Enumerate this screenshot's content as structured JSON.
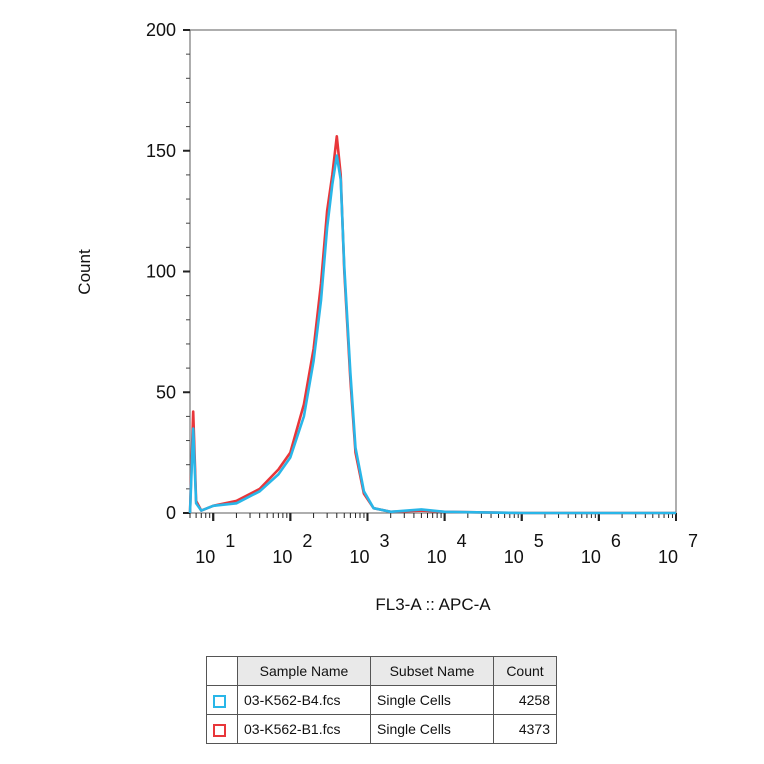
{
  "chart_data": {
    "type": "line",
    "title": "",
    "xlabel": "FL3-A :: APC-A",
    "ylabel": "Count",
    "xscale": "log",
    "xlim": [
      5,
      10000000
    ],
    "ylim": [
      0,
      200
    ],
    "x_ticks": [
      {
        "base": "10",
        "exp": "1",
        "value": 10
      },
      {
        "base": "10",
        "exp": "2",
        "value": 100
      },
      {
        "base": "10",
        "exp": "3",
        "value": 1000
      },
      {
        "base": "10",
        "exp": "4",
        "value": 10000
      },
      {
        "base": "10",
        "exp": "5",
        "value": 100000
      },
      {
        "base": "10",
        "exp": "6",
        "value": 1000000
      },
      {
        "base": "10",
        "exp": "7",
        "value": 10000000
      }
    ],
    "y_ticks": [
      {
        "label": "0",
        "value": 0
      },
      {
        "label": "50",
        "value": 50
      },
      {
        "label": "100",
        "value": 100
      },
      {
        "label": "150",
        "value": 150
      },
      {
        "label": "200",
        "value": 200
      }
    ],
    "grid": false,
    "series": [
      {
        "name": "03-K562-B1.fcs",
        "color": "#e8363a",
        "points": [
          [
            5,
            0
          ],
          [
            5.5,
            42
          ],
          [
            6,
            5
          ],
          [
            7,
            1
          ],
          [
            10,
            3
          ],
          [
            20,
            5
          ],
          [
            40,
            10
          ],
          [
            70,
            18
          ],
          [
            100,
            25
          ],
          [
            150,
            45
          ],
          [
            200,
            68
          ],
          [
            250,
            95
          ],
          [
            300,
            125
          ],
          [
            350,
            140
          ],
          [
            400,
            156
          ],
          [
            450,
            140
          ],
          [
            500,
            100
          ],
          [
            600,
            55
          ],
          [
            700,
            25
          ],
          [
            900,
            8
          ],
          [
            1200,
            2
          ],
          [
            2000,
            0.5
          ],
          [
            5000,
            1
          ],
          [
            10000,
            0.5
          ],
          [
            100000,
            0
          ],
          [
            1000000,
            0
          ],
          [
            10000000,
            0
          ]
        ]
      },
      {
        "name": "03-K562-B4.fcs",
        "color": "#29b6e8",
        "points": [
          [
            5,
            0
          ],
          [
            5.5,
            35
          ],
          [
            6,
            4
          ],
          [
            7,
            1
          ],
          [
            10,
            3
          ],
          [
            20,
            4
          ],
          [
            40,
            9
          ],
          [
            70,
            16
          ],
          [
            100,
            23
          ],
          [
            150,
            40
          ],
          [
            200,
            63
          ],
          [
            250,
            88
          ],
          [
            300,
            118
          ],
          [
            350,
            136
          ],
          [
            400,
            148
          ],
          [
            450,
            138
          ],
          [
            500,
            102
          ],
          [
            600,
            58
          ],
          [
            700,
            27
          ],
          [
            900,
            9
          ],
          [
            1200,
            2
          ],
          [
            2000,
            0.5
          ],
          [
            5000,
            1.5
          ],
          [
            10000,
            0.5
          ],
          [
            100000,
            0
          ],
          [
            1000000,
            0
          ],
          [
            10000000,
            0
          ]
        ]
      }
    ],
    "table": {
      "headers": [
        "Sample Name",
        "Subset Name",
        "Count"
      ],
      "rows": [
        {
          "color": "#29b6e8",
          "sample": "03-K562-B4.fcs",
          "subset": "Single Cells",
          "count": "4258"
        },
        {
          "color": "#e8363a",
          "sample": "03-K562-B1.fcs",
          "subset": "Single Cells",
          "count": "4373"
        }
      ]
    }
  }
}
